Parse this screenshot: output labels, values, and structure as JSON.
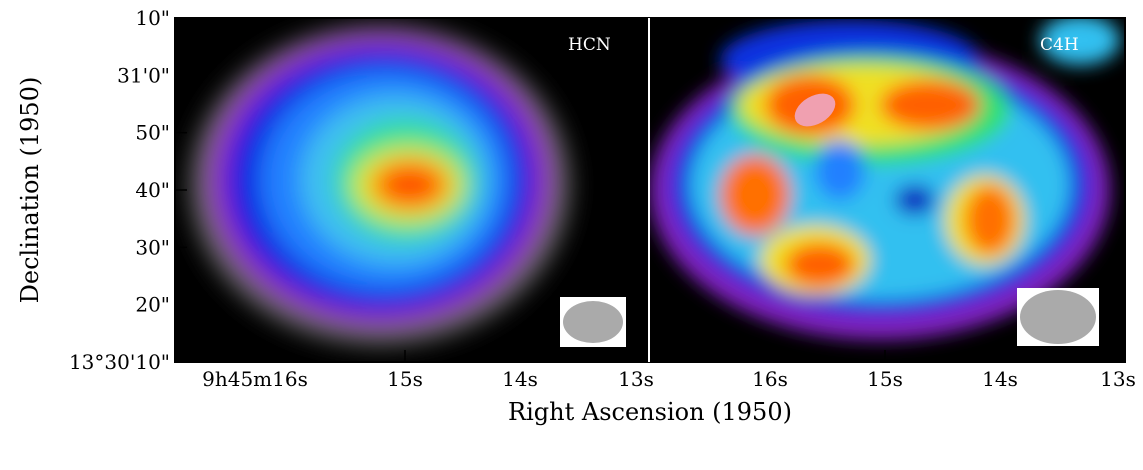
{
  "figure": {
    "y_label": "Declination (1950)",
    "x_label": "Right Ascension (1950)",
    "yticks": [
      "10\"",
      "31'0\"",
      "50\"",
      "40\"",
      "30\"",
      "20\"",
      "13°30'10\""
    ],
    "panels": [
      {
        "label": "HCN",
        "xticks": [
          "9h45m16s",
          "15s",
          "14s",
          "13s"
        ]
      },
      {
        "label": "C4H",
        "xticks": [
          "16s",
          "15s",
          "14s",
          "13s"
        ]
      }
    ]
  }
}
